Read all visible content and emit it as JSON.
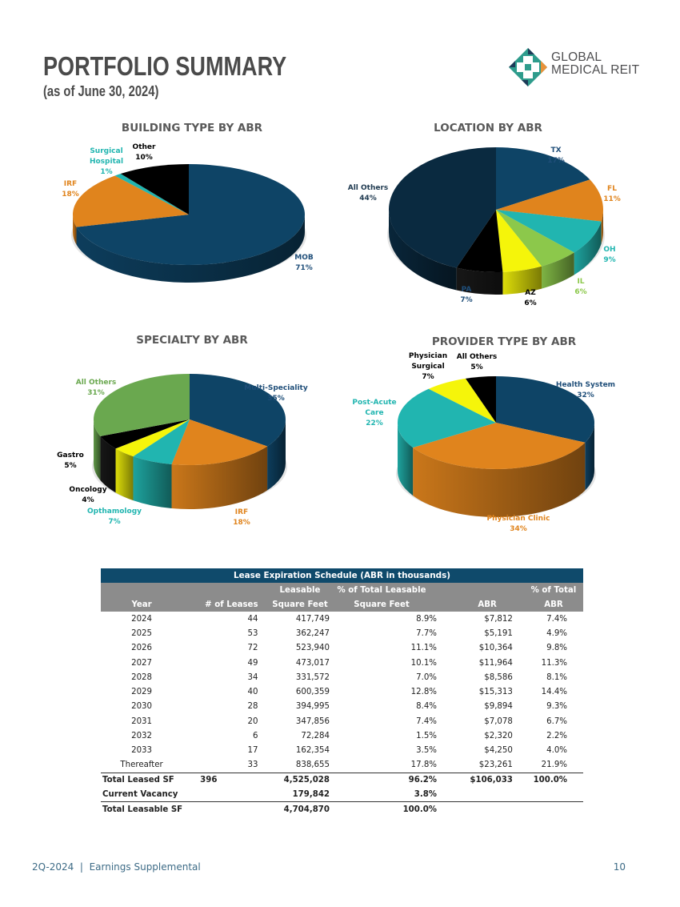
{
  "header": {
    "title": "PORTFOLIO SUMMARY",
    "subtitle": "(as of June 30, 2024)",
    "logo": {
      "line1": "GLOBAL",
      "line2": "MEDICAL REIT",
      "icon": "cross-logo-icon",
      "colors": {
        "teal": "#2e9c8c",
        "navy": "#1d3a57",
        "orange": "#e8923a"
      }
    }
  },
  "chart_data": [
    {
      "type": "pie",
      "id": "building",
      "title": "BUILDING TYPE BY ABR",
      "start_angle_deg": 0,
      "slices": [
        {
          "label": "MOB",
          "value": 71,
          "display": "71%",
          "color": "#0e4466",
          "label_color": "#1f4e79"
        },
        {
          "label": "IRF",
          "value": 18,
          "display": "18%",
          "color": "#e0841d",
          "label_color": "#e0841d"
        },
        {
          "label": "Surgical Hospital",
          "value": 1,
          "display": "1%",
          "color": "#21b5b0",
          "label_color": "#21b5b0"
        },
        {
          "label": "Other",
          "value": 10,
          "display": "10%",
          "color": "#000000",
          "label_color": "#000000"
        }
      ]
    },
    {
      "type": "pie",
      "id": "location",
      "title": "LOCATION BY ABR",
      "slices": [
        {
          "label": "TX",
          "value": 17,
          "display": "17%",
          "color": "#0e4466",
          "label_color": "#1f4e79"
        },
        {
          "label": "FL",
          "value": 11,
          "display": "11%",
          "color": "#e0841d",
          "label_color": "#e0841d"
        },
        {
          "label": "OH",
          "value": 9,
          "display": "9%",
          "color": "#21b5b0",
          "label_color": "#21b5b0"
        },
        {
          "label": "IL",
          "value": 6,
          "display": "6%",
          "color": "#8cc84b",
          "label_color": "#8cc84b"
        },
        {
          "label": "AZ",
          "value": 6,
          "display": "6%",
          "color": "#f5f50a",
          "label_color": "#000000"
        },
        {
          "label": "PA",
          "value": 7,
          "display": "7%",
          "color": "#000000",
          "label_color": "#1f4e79"
        },
        {
          "label": "All Others",
          "value": 44,
          "display": "44%",
          "color": "#0a2a40",
          "label_color": "#1f3a50"
        }
      ]
    },
    {
      "type": "pie",
      "id": "specialty",
      "title": "SPECIALTY BY ABR",
      "slices": [
        {
          "label": "Multi-Speciality",
          "value": 35,
          "display": "35%",
          "color": "#0e4466",
          "label_color": "#1f4e79"
        },
        {
          "label": "IRF",
          "value": 18,
          "display": "18%",
          "color": "#e0841d",
          "label_color": "#e0841d"
        },
        {
          "label": "Opthamology",
          "value": 7,
          "display": "7%",
          "color": "#21b5b0",
          "label_color": "#21b5b0"
        },
        {
          "label": "Oncology",
          "value": 4,
          "display": "4%",
          "color": "#f5f50a",
          "label_color": "#000000"
        },
        {
          "label": "Gastro",
          "value": 5,
          "display": "5%",
          "color": "#000000",
          "label_color": "#000000"
        },
        {
          "label": "All Others",
          "value": 31,
          "display": "31%",
          "color": "#6aa84f",
          "label_color": "#6aa84f"
        }
      ]
    },
    {
      "type": "pie",
      "id": "provider",
      "title": "PROVIDER TYPE BY ABR",
      "slices": [
        {
          "label": "Health System",
          "value": 32,
          "display": "32%",
          "color": "#0e4466",
          "label_color": "#1f4e79"
        },
        {
          "label": "Physician Clinic",
          "value": 34,
          "display": "34%",
          "color": "#e0841d",
          "label_color": "#e0841d"
        },
        {
          "label": "Post-Acute Care",
          "value": 22,
          "display": "22%",
          "color": "#21b5b0",
          "label_color": "#21b5b0"
        },
        {
          "label": "Physician Surgical",
          "value": 7,
          "display": "7%",
          "color": "#f5f50a",
          "label_color": "#000000"
        },
        {
          "label": "All Others",
          "value": 5,
          "display": "5%",
          "color": "#000000",
          "label_color": "#000000"
        }
      ]
    },
    {
      "type": "table",
      "id": "lease",
      "title": "Lease Expiration Schedule (ABR in thousands)",
      "columns": [
        [
          "",
          "Year"
        ],
        [
          "",
          "# of Leases"
        ],
        [
          "Leasable",
          "Square Feet"
        ],
        [
          "% of Total Leasable",
          "Square Feet"
        ],
        [
          "",
          "ABR"
        ],
        [
          "% of Total",
          "ABR"
        ]
      ],
      "rows": [
        [
          "2024",
          "44",
          "417,749",
          "8.9%",
          "$7,812",
          "7.4%"
        ],
        [
          "2025",
          "53",
          "362,247",
          "7.7%",
          "$5,191",
          "4.9%"
        ],
        [
          "2026",
          "72",
          "523,940",
          "11.1%",
          "$10,364",
          "9.8%"
        ],
        [
          "2027",
          "49",
          "473,017",
          "10.1%",
          "$11,964",
          "11.3%"
        ],
        [
          "2028",
          "34",
          "331,572",
          "7.0%",
          "$8,586",
          "8.1%"
        ],
        [
          "2029",
          "40",
          "600,359",
          "12.8%",
          "$15,313",
          "14.4%"
        ],
        [
          "2030",
          "28",
          "394,995",
          "8.4%",
          "$9,894",
          "9.3%"
        ],
        [
          "2031",
          "20",
          "347,856",
          "7.4%",
          "$7,078",
          "6.7%"
        ],
        [
          "2032",
          "6",
          "72,284",
          "1.5%",
          "$2,320",
          "2.2%"
        ],
        [
          "2033",
          "17",
          "162,354",
          "3.5%",
          "$4,250",
          "4.0%"
        ],
        [
          "Thereafter",
          "33",
          "838,655",
          "17.8%",
          "$23,261",
          "21.9%"
        ]
      ],
      "totals": [
        [
          "Total Leased SF",
          "396",
          "4,525,028",
          "96.2%",
          "$106,033",
          "100.0%"
        ],
        [
          "Current Vacancy",
          "",
          "179,842",
          "3.8%",
          "",
          ""
        ],
        [
          "Total Leasable SF",
          "",
          "4,704,870",
          "100.0%",
          "",
          ""
        ]
      ]
    }
  ],
  "footer": {
    "left": "2Q-2024  |  Earnings Supplemental",
    "page_number": "10"
  }
}
